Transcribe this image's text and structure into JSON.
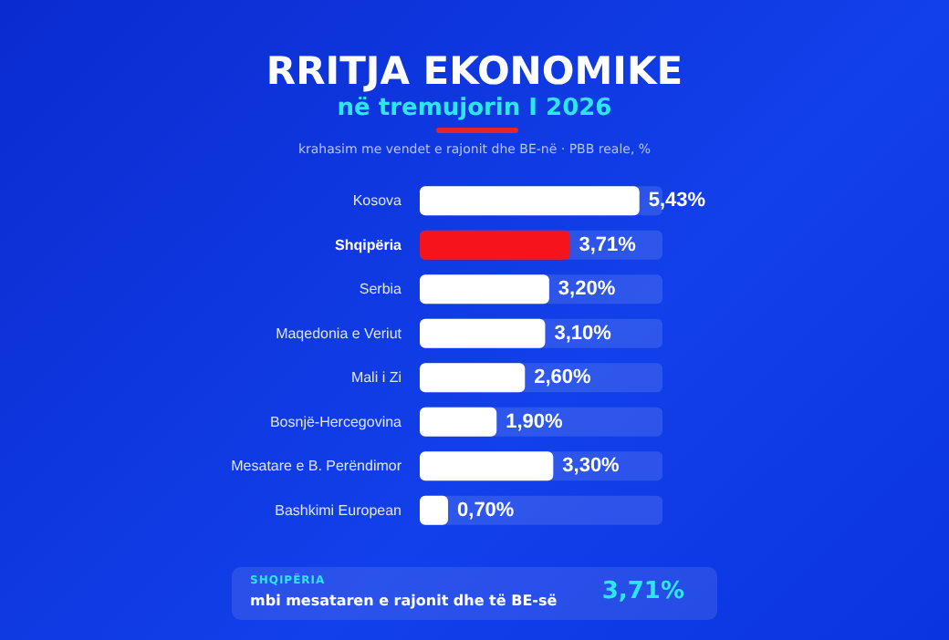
{
  "chart_data": {
    "type": "bar",
    "orientation": "horizontal",
    "title": "RRITJA EKONOMIKE",
    "subtitle": "në tremujorin I 2026",
    "annotations": [
      "krahasim me vendet e rajonit dhe BE-në · PBB reale, %",
      "SHQIPËRIA",
      "mbi mesataren e rajonit dhe të BE-së",
      "3,71%"
    ],
    "categories": [
      "Kosova",
      "Shqipëria",
      "Serbia",
      "Maqedonia e Veriut",
      "Mali i Zi",
      "Bosnjë-Hercegovina",
      "Mesatare e B. Perëndimor",
      "Bashkimi European"
    ],
    "values": [
      5.43,
      3.71,
      3.2,
      3.1,
      2.6,
      1.9,
      3.3,
      0.7
    ],
    "colors": [
      "#ffffff",
      "#f5141c",
      "#ffffff",
      "#ffffff",
      "#ffffff",
      "#ffffff",
      "#ffffff",
      "#ffffff"
    ],
    "value_labels": [
      "5,43%",
      "3,71%",
      "3,20%",
      "3,10%",
      "2,60%",
      "1,90%",
      "3,30%",
      "0,70%"
    ]
  }
}
